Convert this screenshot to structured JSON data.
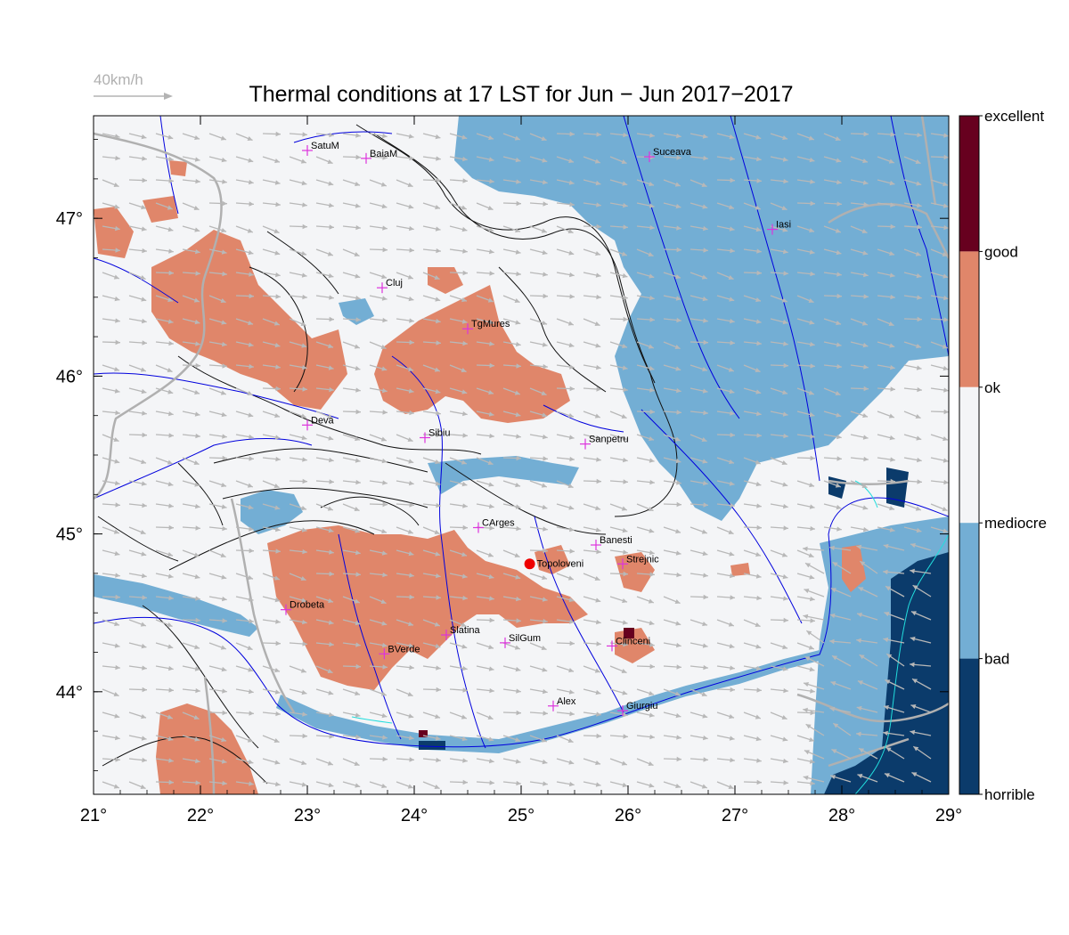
{
  "title": "Thermal conditions at 17 LST for Jun − Jun  2017−2017",
  "wind_scale": {
    "label": "40km/h",
    "color": "#b3b3b3"
  },
  "map": {
    "lon_range": [
      21,
      29
    ],
    "lat_range": [
      43.35,
      47.65
    ],
    "x_tick_labels": [
      "21°",
      "22°",
      "23°",
      "24°",
      "25°",
      "26°",
      "27°",
      "28°",
      "29°"
    ],
    "y_tick_labels": [
      "44°",
      "45°",
      "46°",
      "47°"
    ],
    "y_tick_values": [
      44,
      45,
      46,
      47
    ],
    "x_tick_values": [
      21,
      22,
      23,
      24,
      25,
      26,
      27,
      28,
      29
    ]
  },
  "legend": {
    "levels": [
      {
        "label": "excellent",
        "color": "#67001f"
      },
      {
        "label": "good",
        "color": "#e08060"
      },
      {
        "label": "ok",
        "color": "#f4f5f7"
      },
      {
        "label": "mediocre",
        "color": "#6aaed6"
      },
      {
        "label": "bad",
        "color": "#0c3c6d"
      },
      {
        "label": "horrible",
        "color": "#0c3c6d"
      }
    ]
  },
  "colors": {
    "good": "#e0866a",
    "ok": "#f4f5f7",
    "bad": "#73aed4",
    "horrible": "#0b3b6b",
    "excellent": "#67001f",
    "river": "#0000dd",
    "border": "#b0b0b0",
    "contour": "#111111",
    "station_marker": "#dd33dd",
    "highlight": "#ee0000",
    "wind": "#b8b8b8"
  },
  "cities": [
    {
      "name": "SatuM",
      "lon": 23.0,
      "lat": 47.43
    },
    {
      "name": "BaiaM",
      "lon": 23.55,
      "lat": 47.38
    },
    {
      "name": "Suceava",
      "lon": 26.2,
      "lat": 47.39
    },
    {
      "name": "Iasi",
      "lon": 27.35,
      "lat": 46.93
    },
    {
      "name": "Cluj",
      "lon": 23.7,
      "lat": 46.56
    },
    {
      "name": "TgMures",
      "lon": 24.5,
      "lat": 46.3
    },
    {
      "name": "Deva",
      "lon": 23.0,
      "lat": 45.69
    },
    {
      "name": "Sibiu",
      "lon": 24.1,
      "lat": 45.61
    },
    {
      "name": "Sanpetru",
      "lon": 25.6,
      "lat": 45.57
    },
    {
      "name": "CArges",
      "lon": 24.6,
      "lat": 45.04
    },
    {
      "name": "Banesti",
      "lon": 25.7,
      "lat": 44.93
    },
    {
      "name": "Strejnic",
      "lon": 25.95,
      "lat": 44.81
    },
    {
      "name": "Drobeta",
      "lon": 22.8,
      "lat": 44.52
    },
    {
      "name": "Slatina",
      "lon": 24.3,
      "lat": 44.36
    },
    {
      "name": "SilGum",
      "lon": 24.85,
      "lat": 44.31
    },
    {
      "name": "Clinceni",
      "lon": 25.85,
      "lat": 44.29
    },
    {
      "name": "BVerde",
      "lon": 23.72,
      "lat": 44.24
    },
    {
      "name": "Alex",
      "lon": 25.3,
      "lat": 43.91
    },
    {
      "name": "Giurgiu",
      "lon": 25.95,
      "lat": 43.88
    }
  ],
  "highlight": {
    "name": "Topoloveni",
    "lon": 25.08,
    "lat": 44.81
  }
}
